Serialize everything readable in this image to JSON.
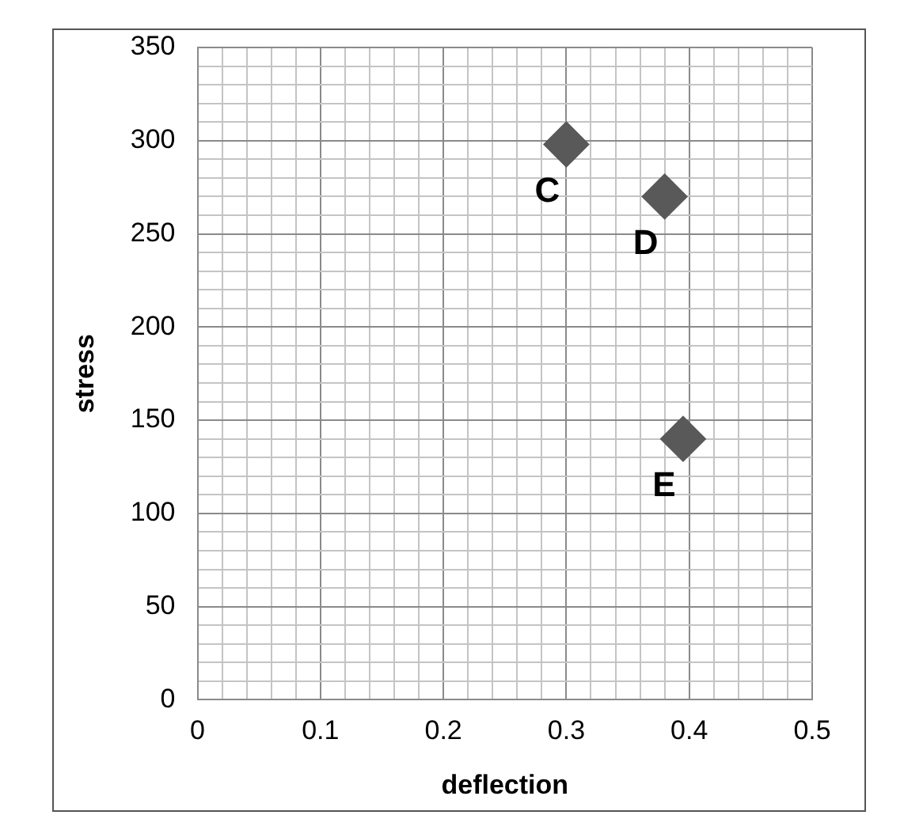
{
  "chart_data": {
    "type": "scatter",
    "xlabel": "deflection",
    "ylabel": "stress",
    "series": [
      {
        "color": "#595959",
        "x": [
          0.3,
          0.38,
          0.395
        ],
        "values": [
          298,
          270,
          140
        ]
      }
    ],
    "annotations": [
      {
        "text": "C",
        "x": 0.3,
        "y": 298
      },
      {
        "text": "D",
        "x": 0.38,
        "y": 270
      },
      {
        "text": "E",
        "x": 0.395,
        "y": 140
      }
    ],
    "xlim": [
      0,
      0.5
    ],
    "ylim": [
      0,
      350
    ],
    "xticks": [
      0,
      {
        "value": 0.02,
        "label": null
      },
      {
        "value": 0.04,
        "label": null
      },
      {
        "value": 0.06,
        "label": null
      },
      {
        "value": 0.08,
        "label": null
      },
      0.1,
      {
        "value": 0.12,
        "label": null
      },
      {
        "value": 0.14,
        "label": null
      },
      {
        "value": 0.16,
        "label": null
      },
      {
        "value": 0.18,
        "label": null
      },
      0.2,
      {
        "value": 0.22,
        "label": null
      },
      {
        "value": 0.24,
        "label": null
      },
      {
        "value": 0.26,
        "label": null
      },
      {
        "value": 0.28,
        "label": null
      },
      0.3,
      {
        "value": 0.32,
        "label": null
      },
      {
        "value": 0.34,
        "label": null
      },
      {
        "value": 0.36,
        "label": null
      },
      {
        "value": 0.38,
        "label": null
      },
      0.4,
      {
        "value": 0.42,
        "label": null
      },
      {
        "value": 0.44,
        "label": null
      },
      {
        "value": 0.46,
        "label": null
      },
      {
        "value": 0.48,
        "label": null
      },
      0.5
    ],
    "yticks": [
      0,
      {
        "value": 10,
        "label": null
      },
      {
        "value": 20,
        "label": null
      },
      {
        "value": 30,
        "label": null
      },
      {
        "value": 40,
        "label": null
      },
      50,
      {
        "value": 60,
        "label": null
      },
      {
        "value": 70,
        "label": null
      },
      {
        "value": 80,
        "label": null
      },
      {
        "value": 90,
        "label": null
      },
      100,
      {
        "value": 110,
        "label": null
      },
      {
        "value": 120,
        "label": null
      },
      {
        "value": 130,
        "label": null
      },
      {
        "value": 140,
        "label": null
      },
      150,
      {
        "value": 160,
        "label": null
      },
      {
        "value": 170,
        "label": null
      },
      {
        "value": 180,
        "label": null
      },
      {
        "value": 190,
        "label": null
      },
      200,
      {
        "value": 210,
        "label": null
      },
      {
        "value": 220,
        "label": null
      },
      {
        "value": 230,
        "label": null
      },
      {
        "value": 240,
        "label": null
      },
      250,
      {
        "value": 260,
        "label": null
      },
      {
        "value": 270,
        "label": null
      },
      {
        "value": 280,
        "label": null
      },
      {
        "value": 290,
        "label": null
      },
      300,
      {
        "value": 310,
        "label": null
      },
      {
        "value": 320,
        "label": null
      },
      {
        "value": 330,
        "label": null
      },
      {
        "value": 340,
        "label": null
      },
      350
    ],
    "grid": true,
    "marker": "diamond",
    "legend": false
  }
}
